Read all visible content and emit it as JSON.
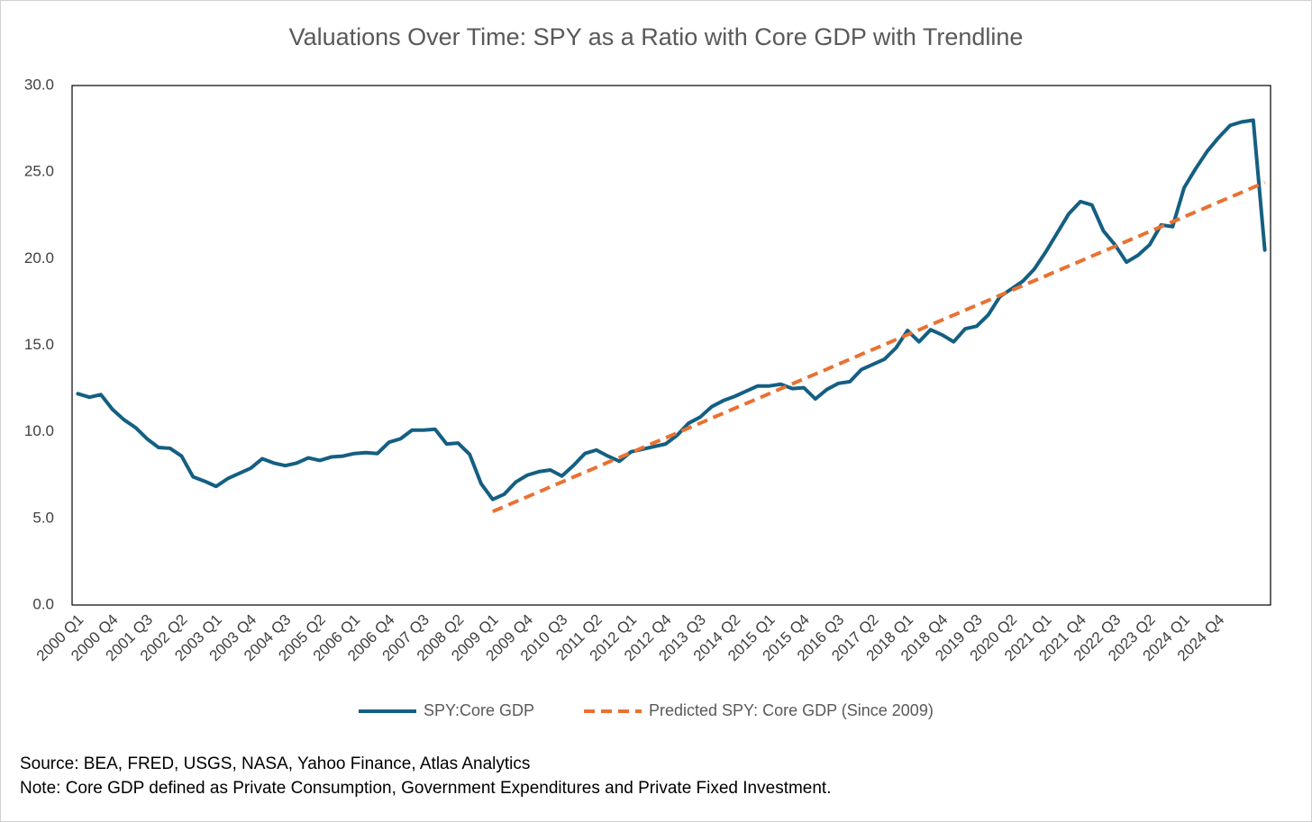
{
  "chart_data": {
    "type": "line",
    "title": "Valuations Over Time: SPY as a Ratio with Core GDP with Trendline",
    "categories": [
      "2000 Q1",
      null,
      null,
      "2000 Q4",
      null,
      null,
      "2001 Q3",
      null,
      null,
      "2002 Q2",
      null,
      null,
      "2003 Q1",
      null,
      null,
      "2003 Q4",
      null,
      null,
      "2004 Q3",
      null,
      null,
      "2005 Q2",
      null,
      null,
      "2006 Q1",
      null,
      null,
      "2006 Q4",
      null,
      null,
      "2007 Q3",
      null,
      null,
      "2008 Q2",
      null,
      null,
      "2009 Q1",
      null,
      null,
      "2009 Q4",
      null,
      null,
      "2010 Q3",
      null,
      null,
      "2011 Q2",
      null,
      null,
      "2012 Q1",
      null,
      null,
      "2012 Q4",
      null,
      null,
      "2013 Q3",
      null,
      null,
      "2014 Q2",
      null,
      null,
      "2015 Q1",
      null,
      null,
      "2015 Q4",
      null,
      null,
      "2016 Q3",
      null,
      null,
      "2017 Q2",
      null,
      null,
      "2018 Q1",
      null,
      null,
      "2018 Q4",
      null,
      null,
      "2019 Q3",
      null,
      null,
      "2020 Q2",
      null,
      null,
      "2021 Q1",
      null,
      null,
      "2021 Q4",
      null,
      null,
      "2022 Q3",
      null,
      null,
      "2023 Q2",
      null,
      null,
      "2024 Q1",
      null,
      null,
      "2024 Q4",
      null,
      null,
      null,
      null
    ],
    "series": [
      {
        "name": "SPY:Core GDP",
        "color": "#145f82",
        "dash": false,
        "values": [
          12.2,
          12.0,
          12.15,
          11.3,
          10.7,
          10.25,
          9.6,
          9.1,
          9.05,
          8.6,
          7.4,
          7.15,
          6.85,
          7.3,
          7.6,
          7.9,
          8.45,
          8.2,
          8.05,
          8.2,
          8.5,
          8.35,
          8.55,
          8.6,
          8.75,
          8.8,
          8.75,
          9.4,
          9.6,
          10.1,
          10.1,
          10.15,
          9.3,
          9.35,
          8.7,
          7.0,
          6.1,
          6.4,
          7.1,
          7.5,
          7.7,
          7.8,
          7.45,
          8.05,
          8.75,
          8.95,
          8.6,
          8.3,
          8.85,
          9.0,
          9.15,
          9.3,
          9.8,
          10.5,
          10.85,
          11.45,
          11.8,
          12.05,
          12.35,
          12.65,
          12.65,
          12.75,
          12.5,
          12.55,
          11.9,
          12.45,
          12.8,
          12.9,
          13.6,
          13.9,
          14.2,
          14.85,
          15.85,
          15.2,
          15.9,
          15.6,
          15.2,
          15.95,
          16.1,
          16.75,
          17.8,
          18.25,
          18.7,
          19.4,
          20.4,
          21.5,
          22.6,
          23.3,
          23.1,
          21.6,
          20.8,
          19.8,
          20.2,
          20.8,
          21.95,
          21.85,
          24.1,
          25.2,
          26.2,
          27.0,
          27.7,
          27.9,
          28.0,
          20.5
        ]
      },
      {
        "name": "Predicted SPY: Core GDP (Since 2009)",
        "color": "#e97132",
        "dash": true,
        "values": [
          null,
          null,
          null,
          null,
          null,
          null,
          null,
          null,
          null,
          null,
          null,
          null,
          null,
          null,
          null,
          null,
          null,
          null,
          null,
          null,
          null,
          null,
          null,
          null,
          null,
          null,
          null,
          null,
          null,
          null,
          null,
          null,
          null,
          null,
          null,
          null,
          5.4,
          5.68,
          5.97,
          6.25,
          6.53,
          6.82,
          7.1,
          7.39,
          7.67,
          7.95,
          8.24,
          8.52,
          8.8,
          9.09,
          9.37,
          9.65,
          9.94,
          10.22,
          10.5,
          10.79,
          11.07,
          11.36,
          11.64,
          11.92,
          12.21,
          12.49,
          12.77,
          13.06,
          13.34,
          13.62,
          13.91,
          14.19,
          14.48,
          14.76,
          15.04,
          15.33,
          15.61,
          15.89,
          16.18,
          16.46,
          16.74,
          17.03,
          17.31,
          17.59,
          17.88,
          18.16,
          18.45,
          18.73,
          19.01,
          19.3,
          19.58,
          19.86,
          20.15,
          20.43,
          20.71,
          21.0,
          21.28,
          21.57,
          21.85,
          22.13,
          22.42,
          22.7,
          22.98,
          23.27,
          23.55,
          23.83,
          24.12,
          24.4
        ]
      }
    ],
    "ylim": [
      0,
      30
    ],
    "yticks": [
      {
        "value": 0,
        "label": "0.0"
      },
      {
        "value": 5,
        "label": "5.0"
      },
      {
        "value": 10,
        "label": "10.0"
      },
      {
        "value": 15,
        "label": "15.0"
      },
      {
        "value": 20,
        "label": "20.0"
      },
      {
        "value": 25,
        "label": "25.0"
      },
      {
        "value": 30,
        "label": "30.0"
      }
    ],
    "grid": false,
    "legend": "bottom",
    "source": "Source: BEA,  FRED, USGS, NASA, Yahoo Finance, Atlas Analytics",
    "note": "Note: Core GDP defined as Private Consumption, Government Expenditures and Private Fixed Investment."
  }
}
